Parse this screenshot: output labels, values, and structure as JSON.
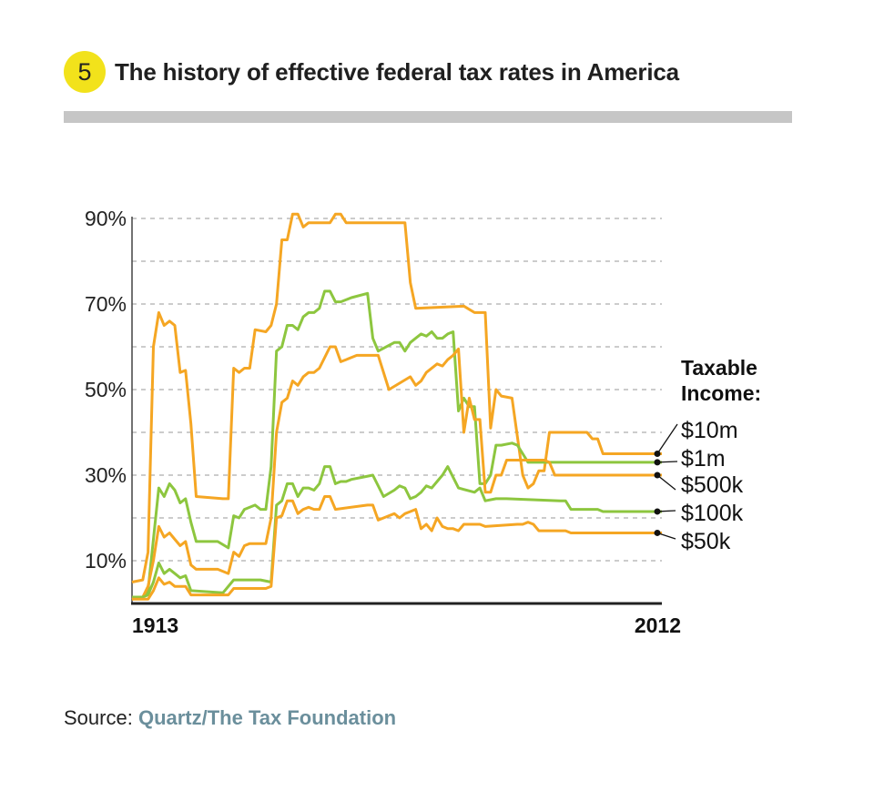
{
  "header": {
    "badge": "5",
    "title": "The history of effective federal tax rates in America"
  },
  "legend": {
    "title_line1": "Taxable",
    "title_line2": "Income:"
  },
  "source": {
    "label": "Source:",
    "value": "Quartz/The Tax Foundation"
  },
  "colors": {
    "orange": "#f5a623",
    "green": "#8dc63f",
    "grid": "#9a9a9a",
    "axis": "#444444",
    "badge": "#f2e21b",
    "rule": "#c6c6c6",
    "source_link": "#6b8f9c"
  },
  "chart_data": {
    "type": "line",
    "title": "The history of effective federal tax rates in America",
    "x_range": [
      1913,
      2012
    ],
    "x_tick_labels": [
      "1913",
      "2012"
    ],
    "ylim": [
      0,
      90
    ],
    "y_ticks": [
      10,
      30,
      50,
      70,
      90
    ],
    "y_tick_labels": [
      "10%",
      "30%",
      "50%",
      "70%",
      "90%"
    ],
    "grid": true,
    "grid_y": [
      0,
      10,
      20,
      30,
      40,
      50,
      60,
      70,
      80,
      90
    ],
    "legend_position": "right",
    "series": [
      {
        "name": "$10m",
        "color": "#f5a623",
        "points": [
          [
            1913,
            5
          ],
          [
            1915,
            5.5
          ],
          [
            1916,
            12
          ],
          [
            1917,
            60
          ],
          [
            1918,
            68
          ],
          [
            1919,
            65
          ],
          [
            1920,
            66
          ],
          [
            1921,
            65
          ],
          [
            1922,
            54
          ],
          [
            1923,
            54.5
          ],
          [
            1924,
            42
          ],
          [
            1925,
            25
          ],
          [
            1930,
            24.5
          ],
          [
            1931,
            24.5
          ],
          [
            1932,
            55
          ],
          [
            1933,
            54
          ],
          [
            1934,
            55
          ],
          [
            1935,
            55
          ],
          [
            1936,
            64
          ],
          [
            1938,
            63.5
          ],
          [
            1939,
            65
          ],
          [
            1940,
            70
          ],
          [
            1941,
            85
          ],
          [
            1942,
            85
          ],
          [
            1943,
            91
          ],
          [
            1944,
            91
          ],
          [
            1945,
            88
          ],
          [
            1946,
            89
          ],
          [
            1950,
            89
          ],
          [
            1951,
            91
          ],
          [
            1952,
            91
          ],
          [
            1953,
            89
          ],
          [
            1964,
            89
          ],
          [
            1965,
            75
          ],
          [
            1966,
            69
          ],
          [
            1975,
            69.5
          ],
          [
            1977,
            68
          ],
          [
            1979,
            68
          ],
          [
            1980,
            41
          ],
          [
            1981,
            50
          ],
          [
            1982,
            48.5
          ],
          [
            1984,
            48
          ],
          [
            1986,
            30
          ],
          [
            1987,
            27
          ],
          [
            1988,
            28
          ],
          [
            1989,
            31
          ],
          [
            1990,
            31
          ],
          [
            1991,
            40
          ],
          [
            1992,
            40
          ],
          [
            1998,
            40
          ],
          [
            1999,
            38.5
          ],
          [
            2000,
            38.5
          ],
          [
            2001,
            35
          ],
          [
            2002,
            35
          ],
          [
            2012,
            35
          ]
        ]
      },
      {
        "name": "$1m",
        "color": "#8dc63f",
        "points": [
          [
            1913,
            1.5
          ],
          [
            1915,
            1.5
          ],
          [
            1916,
            3
          ],
          [
            1917,
            15
          ],
          [
            1918,
            27
          ],
          [
            1919,
            25
          ],
          [
            1920,
            28
          ],
          [
            1921,
            26.5
          ],
          [
            1922,
            23.5
          ],
          [
            1923,
            24.5
          ],
          [
            1924,
            19
          ],
          [
            1925,
            14.5
          ],
          [
            1929,
            14.5
          ],
          [
            1931,
            13
          ],
          [
            1932,
            20.5
          ],
          [
            1933,
            20
          ],
          [
            1934,
            22
          ],
          [
            1936,
            23
          ],
          [
            1937,
            22
          ],
          [
            1938,
            22
          ],
          [
            1939,
            32
          ],
          [
            1940,
            59
          ],
          [
            1941,
            60
          ],
          [
            1942,
            65
          ],
          [
            1943,
            65
          ],
          [
            1944,
            64
          ],
          [
            1945,
            67
          ],
          [
            1946,
            68
          ],
          [
            1947,
            68
          ],
          [
            1948,
            69
          ],
          [
            1949,
            73
          ],
          [
            1950,
            73
          ],
          [
            1951,
            70.5
          ],
          [
            1952,
            70.5
          ],
          [
            1954,
            71.5
          ],
          [
            1957,
            72.5
          ],
          [
            1958,
            62
          ],
          [
            1959,
            59
          ],
          [
            1962,
            61
          ],
          [
            1963,
            61
          ],
          [
            1964,
            59
          ],
          [
            1965,
            61
          ],
          [
            1966,
            62
          ],
          [
            1967,
            63
          ],
          [
            1968,
            62.5
          ],
          [
            1969,
            63.5
          ],
          [
            1970,
            62
          ],
          [
            1971,
            62
          ],
          [
            1972,
            63
          ],
          [
            1973,
            63.5
          ],
          [
            1974,
            45
          ],
          [
            1975,
            48
          ],
          [
            1976,
            46
          ],
          [
            1977,
            46
          ],
          [
            1978,
            28
          ],
          [
            1979,
            28
          ],
          [
            1980,
            30
          ],
          [
            1981,
            37
          ],
          [
            1982,
            37
          ],
          [
            1984,
            37.5
          ],
          [
            1985,
            37
          ],
          [
            1986,
            35
          ],
          [
            1987,
            33
          ],
          [
            1990,
            33
          ],
          [
            2012,
            33
          ]
        ]
      },
      {
        "name": "$500k",
        "color": "#f5a623",
        "points": [
          [
            1913,
            1
          ],
          [
            1915,
            1.5
          ],
          [
            1916,
            4
          ],
          [
            1917,
            10
          ],
          [
            1918,
            18
          ],
          [
            1919,
            15.5
          ],
          [
            1920,
            16.5
          ],
          [
            1921,
            15
          ],
          [
            1922,
            13.5
          ],
          [
            1923,
            14.5
          ],
          [
            1924,
            9
          ],
          [
            1925,
            8
          ],
          [
            1929,
            8
          ],
          [
            1931,
            7
          ],
          [
            1932,
            12
          ],
          [
            1933,
            11
          ],
          [
            1934,
            13.5
          ],
          [
            1935,
            14
          ],
          [
            1936,
            14
          ],
          [
            1938,
            14
          ],
          [
            1939,
            20
          ],
          [
            1940,
            40
          ],
          [
            1941,
            47
          ],
          [
            1942,
            48
          ],
          [
            1943,
            52
          ],
          [
            1944,
            51
          ],
          [
            1945,
            53
          ],
          [
            1946,
            54
          ],
          [
            1947,
            54
          ],
          [
            1948,
            55
          ],
          [
            1950,
            60
          ],
          [
            1951,
            60
          ],
          [
            1952,
            56.5
          ],
          [
            1953,
            57
          ],
          [
            1955,
            58
          ],
          [
            1959,
            58
          ],
          [
            1960,
            54
          ],
          [
            1961,
            50
          ],
          [
            1965,
            53
          ],
          [
            1966,
            51
          ],
          [
            1967,
            52
          ],
          [
            1968,
            54
          ],
          [
            1970,
            56
          ],
          [
            1971,
            55.5
          ],
          [
            1972,
            57
          ],
          [
            1973,
            58
          ],
          [
            1974,
            59.5
          ],
          [
            1975,
            40
          ],
          [
            1976,
            48
          ],
          [
            1977,
            43
          ],
          [
            1978,
            43
          ],
          [
            1979,
            26
          ],
          [
            1980,
            26
          ],
          [
            1981,
            30
          ],
          [
            1982,
            30
          ],
          [
            1983,
            33.5
          ],
          [
            1984,
            33.5
          ],
          [
            1986,
            33.5
          ],
          [
            1990,
            33.5
          ],
          [
            1991,
            33
          ],
          [
            1992,
            30
          ],
          [
            2012,
            30
          ]
        ]
      },
      {
        "name": "$100k",
        "color": "#8dc63f",
        "points": [
          [
            1913,
            1.5
          ],
          [
            1915,
            1.5
          ],
          [
            1916,
            2
          ],
          [
            1917,
            5
          ],
          [
            1918,
            9.5
          ],
          [
            1919,
            7
          ],
          [
            1920,
            8
          ],
          [
            1921,
            7
          ],
          [
            1922,
            6
          ],
          [
            1923,
            6.5
          ],
          [
            1924,
            3
          ],
          [
            1930,
            2.5
          ],
          [
            1932,
            5.5
          ],
          [
            1937,
            5.5
          ],
          [
            1939,
            5
          ],
          [
            1940,
            23
          ],
          [
            1941,
            24
          ],
          [
            1942,
            28
          ],
          [
            1943,
            28
          ],
          [
            1944,
            25
          ],
          [
            1945,
            27
          ],
          [
            1946,
            27
          ],
          [
            1947,
            26.5
          ],
          [
            1948,
            28
          ],
          [
            1949,
            32
          ],
          [
            1950,
            32
          ],
          [
            1951,
            28
          ],
          [
            1952,
            28.5
          ],
          [
            1953,
            28.5
          ],
          [
            1954,
            29
          ],
          [
            1956,
            29.5
          ],
          [
            1958,
            30
          ],
          [
            1960,
            25
          ],
          [
            1962,
            26.5
          ],
          [
            1963,
            27.5
          ],
          [
            1964,
            27
          ],
          [
            1965,
            24.5
          ],
          [
            1966,
            25
          ],
          [
            1967,
            26
          ],
          [
            1968,
            27.5
          ],
          [
            1969,
            27
          ],
          [
            1970,
            28.5
          ],
          [
            1971,
            30
          ],
          [
            1972,
            32
          ],
          [
            1974,
            27
          ],
          [
            1977,
            26
          ],
          [
            1978,
            27
          ],
          [
            1979,
            24
          ],
          [
            1981,
            24.5
          ],
          [
            1982,
            24.5
          ],
          [
            1983,
            24.5
          ],
          [
            1993,
            24
          ],
          [
            1994,
            24
          ],
          [
            1995,
            22
          ],
          [
            2000,
            22
          ],
          [
            2001,
            21.5
          ],
          [
            2012,
            21.5
          ]
        ]
      },
      {
        "name": "$50k",
        "color": "#f5a623",
        "points": [
          [
            1913,
            1
          ],
          [
            1916,
            1
          ],
          [
            1917,
            3
          ],
          [
            1918,
            6
          ],
          [
            1919,
            4.5
          ],
          [
            1920,
            5
          ],
          [
            1921,
            4
          ],
          [
            1922,
            4
          ],
          [
            1923,
            4
          ],
          [
            1924,
            2
          ],
          [
            1931,
            2
          ],
          [
            1932,
            3.5
          ],
          [
            1938,
            3.5
          ],
          [
            1939,
            4
          ],
          [
            1940,
            20
          ],
          [
            1941,
            20.5
          ],
          [
            1942,
            24
          ],
          [
            1943,
            24
          ],
          [
            1944,
            21
          ],
          [
            1945,
            22
          ],
          [
            1946,
            22.5
          ],
          [
            1947,
            22
          ],
          [
            1948,
            22
          ],
          [
            1949,
            25
          ],
          [
            1950,
            25
          ],
          [
            1951,
            22
          ],
          [
            1957,
            23
          ],
          [
            1958,
            23
          ],
          [
            1959,
            19.5
          ],
          [
            1961,
            20.5
          ],
          [
            1962,
            21
          ],
          [
            1963,
            20
          ],
          [
            1964,
            21
          ],
          [
            1965,
            21.5
          ],
          [
            1966,
            22
          ],
          [
            1967,
            17.5
          ],
          [
            1968,
            18.5
          ],
          [
            1969,
            17
          ],
          [
            1970,
            20
          ],
          [
            1971,
            18
          ],
          [
            1972,
            17.5
          ],
          [
            1973,
            17.5
          ],
          [
            1974,
            17
          ],
          [
            1975,
            18.5
          ],
          [
            1978,
            18.5
          ],
          [
            1979,
            18
          ],
          [
            1985,
            18.5
          ],
          [
            1986,
            18.5
          ],
          [
            1987,
            19
          ],
          [
            1988,
            18.5
          ],
          [
            1989,
            17
          ],
          [
            1994,
            17
          ],
          [
            1995,
            16.5
          ],
          [
            1996,
            16.5
          ],
          [
            2012,
            16.5
          ]
        ]
      }
    ]
  }
}
